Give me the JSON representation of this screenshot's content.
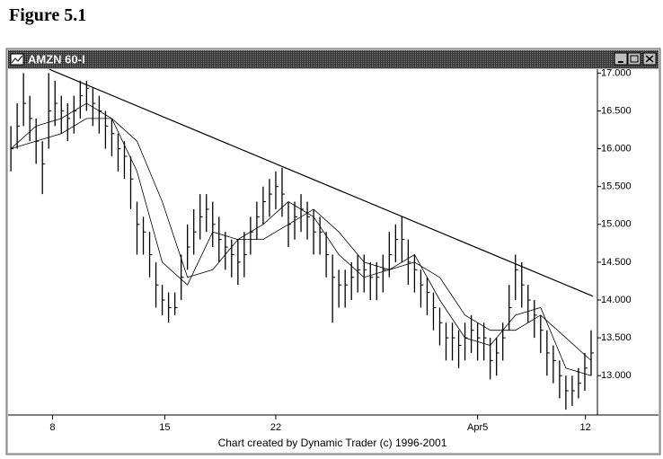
{
  "figure_label": "Figure 5.1",
  "chart_data": {
    "type": "ohlc",
    "title": "AMZN 60-I",
    "footer": "Chart created by Dynamic Trader (c) 1996-2001",
    "x": [
      0,
      1,
      2,
      3,
      4,
      5,
      6,
      7,
      8,
      9,
      10,
      11,
      12,
      13,
      14,
      15,
      16,
      17,
      18,
      19,
      20,
      21,
      22,
      23,
      24,
      25,
      26,
      27,
      28,
      29,
      30,
      31,
      32,
      33,
      34,
      35,
      36,
      37,
      38,
      39,
      40,
      41,
      42,
      43,
      44,
      45,
      46,
      47,
      48,
      49,
      50,
      51,
      52,
      53,
      54,
      55,
      56,
      57,
      58,
      59,
      60,
      61,
      62,
      63,
      64,
      65,
      66,
      67,
      68,
      69,
      70,
      71,
      72,
      73,
      74,
      75,
      76,
      77,
      78,
      79,
      80,
      81,
      82,
      83,
      84,
      85,
      86,
      87,
      88,
      89,
      90,
      91,
      92
    ],
    "high": [
      16.3,
      16.6,
      17.0,
      16.7,
      16.4,
      16.1,
      17.0,
      16.9,
      16.7,
      16.6,
      16.7,
      16.9,
      16.9,
      16.8,
      16.7,
      16.5,
      16.4,
      16.2,
      16.1,
      15.9,
      15.3,
      15.1,
      14.9,
      14.5,
      14.2,
      14.1,
      14.1,
      14.6,
      15.0,
      15.2,
      15.4,
      15.4,
      15.3,
      15.1,
      14.9,
      14.8,
      14.8,
      14.9,
      15.1,
      15.3,
      15.5,
      15.6,
      15.7,
      15.75,
      15.3,
      15.3,
      15.4,
      15.3,
      15.2,
      15.1,
      14.9,
      14.6,
      14.4,
      14.4,
      14.5,
      14.6,
      14.6,
      14.5,
      14.5,
      14.6,
      14.9,
      15.0,
      15.1,
      14.8,
      14.6,
      14.4,
      14.3,
      14.1,
      13.9,
      13.7,
      13.7,
      13.6,
      13.7,
      13.8,
      13.7,
      13.7,
      13.5,
      13.5,
      13.7,
      14.2,
      14.6,
      14.5,
      14.2,
      14.0,
      13.8,
      13.6,
      13.4,
      13.2,
      13.0,
      13.0,
      13.1,
      13.3,
      13.6
    ],
    "low": [
      15.7,
      16.0,
      16.3,
      16.1,
      15.8,
      15.4,
      16.0,
      16.3,
      16.2,
      16.1,
      16.2,
      16.4,
      16.5,
      16.3,
      16.2,
      16.0,
      15.9,
      15.7,
      15.6,
      15.2,
      14.6,
      14.6,
      14.3,
      13.9,
      13.8,
      13.7,
      13.8,
      14.0,
      14.4,
      14.6,
      14.8,
      14.9,
      14.7,
      14.5,
      14.4,
      14.3,
      14.2,
      14.3,
      14.6,
      14.8,
      15.0,
      15.1,
      15.2,
      15.1,
      14.7,
      14.8,
      14.9,
      14.8,
      14.6,
      14.6,
      14.3,
      13.7,
      13.9,
      13.9,
      14.0,
      14.1,
      14.1,
      14.0,
      14.0,
      14.1,
      14.3,
      14.5,
      14.5,
      14.2,
      14.1,
      13.9,
      13.8,
      13.6,
      13.4,
      13.2,
      13.2,
      13.1,
      13.2,
      13.3,
      13.2,
      13.2,
      12.95,
      13.0,
      13.2,
      13.6,
      14.0,
      13.9,
      13.7,
      13.5,
      13.3,
      13.0,
      12.9,
      12.7,
      12.55,
      12.6,
      12.7,
      12.8,
      13.0
    ],
    "close": [
      16.0,
      16.3,
      16.6,
      16.4,
      16.1,
      15.8,
      16.5,
      16.6,
      16.5,
      16.4,
      16.5,
      16.7,
      16.8,
      16.6,
      16.5,
      16.3,
      16.2,
      16.0,
      15.9,
      15.6,
      15.0,
      14.9,
      14.6,
      14.2,
      14.0,
      13.9,
      13.9,
      14.3,
      14.7,
      14.9,
      15.1,
      15.2,
      15.0,
      14.8,
      14.7,
      14.6,
      14.5,
      14.6,
      14.9,
      15.1,
      15.3,
      15.4,
      15.5,
      15.4,
      15.0,
      15.1,
      15.2,
      15.1,
      14.9,
      14.9,
      14.6,
      14.3,
      14.2,
      14.2,
      14.3,
      14.4,
      14.4,
      14.3,
      14.3,
      14.4,
      14.6,
      14.8,
      14.8,
      14.5,
      14.4,
      14.2,
      14.1,
      13.9,
      13.7,
      13.5,
      13.5,
      13.4,
      13.5,
      13.6,
      13.5,
      13.5,
      13.2,
      13.3,
      13.5,
      13.9,
      14.4,
      14.2,
      14.0,
      13.8,
      13.6,
      13.3,
      13.2,
      13.0,
      12.8,
      12.8,
      12.9,
      13.1,
      13.3
    ],
    "color": "#000000",
    "series": [
      {
        "color": "#000000",
        "x": [
          0,
          4,
          8,
          12,
          16,
          20,
          24,
          28,
          32,
          36,
          40,
          44,
          48,
          52,
          56,
          60,
          64,
          68,
          72,
          76,
          80,
          84,
          88,
          92
        ],
        "values": [
          16.0,
          16.3,
          16.4,
          16.6,
          16.4,
          15.7,
          14.5,
          14.2,
          14.9,
          14.8,
          15.0,
          15.3,
          15.1,
          14.6,
          14.3,
          14.4,
          14.6,
          14.0,
          13.5,
          13.4,
          13.8,
          13.9,
          13.1,
          13.0
        ]
      },
      {
        "color": "#000000",
        "x": [
          0,
          4,
          8,
          12,
          16,
          20,
          24,
          28,
          32,
          36,
          40,
          44,
          48,
          52,
          56,
          60,
          64,
          68,
          72,
          76,
          80,
          84,
          88,
          92
        ],
        "values": [
          16.0,
          16.1,
          16.2,
          16.4,
          16.4,
          16.1,
          15.3,
          14.3,
          14.4,
          14.8,
          14.8,
          15.0,
          15.2,
          14.9,
          14.5,
          14.4,
          14.5,
          14.3,
          13.8,
          13.6,
          13.6,
          13.8,
          13.5,
          13.2
        ]
      }
    ],
    "trendline": {
      "x": [
        6.1,
        92.3
      ],
      "values": [
        17.05,
        14.05
      ]
    },
    "xlim": [
      -0.3,
      93
    ],
    "ylim": [
      12.48,
      17.04
    ],
    "xticks": [
      {
        "value": 6.6,
        "label": "8"
      },
      {
        "value": 24.4,
        "label": "15"
      },
      {
        "value": 42,
        "label": "22"
      },
      {
        "value": 74,
        "label": "Apr5"
      },
      {
        "value": 91.1,
        "label": "12"
      }
    ],
    "yticks": [
      {
        "value": 13,
        "label": "13.000"
      },
      {
        "value": 13.5,
        "label": "13.500"
      },
      {
        "value": 14,
        "label": "14.000"
      },
      {
        "value": 14.5,
        "label": "14.500"
      },
      {
        "value": 15,
        "label": "15.000"
      },
      {
        "value": 15.5,
        "label": "15.500"
      },
      {
        "value": 16,
        "label": "16.000"
      },
      {
        "value": 16.5,
        "label": "16.500"
      },
      {
        "value": 17,
        "label": "17.000"
      }
    ]
  }
}
